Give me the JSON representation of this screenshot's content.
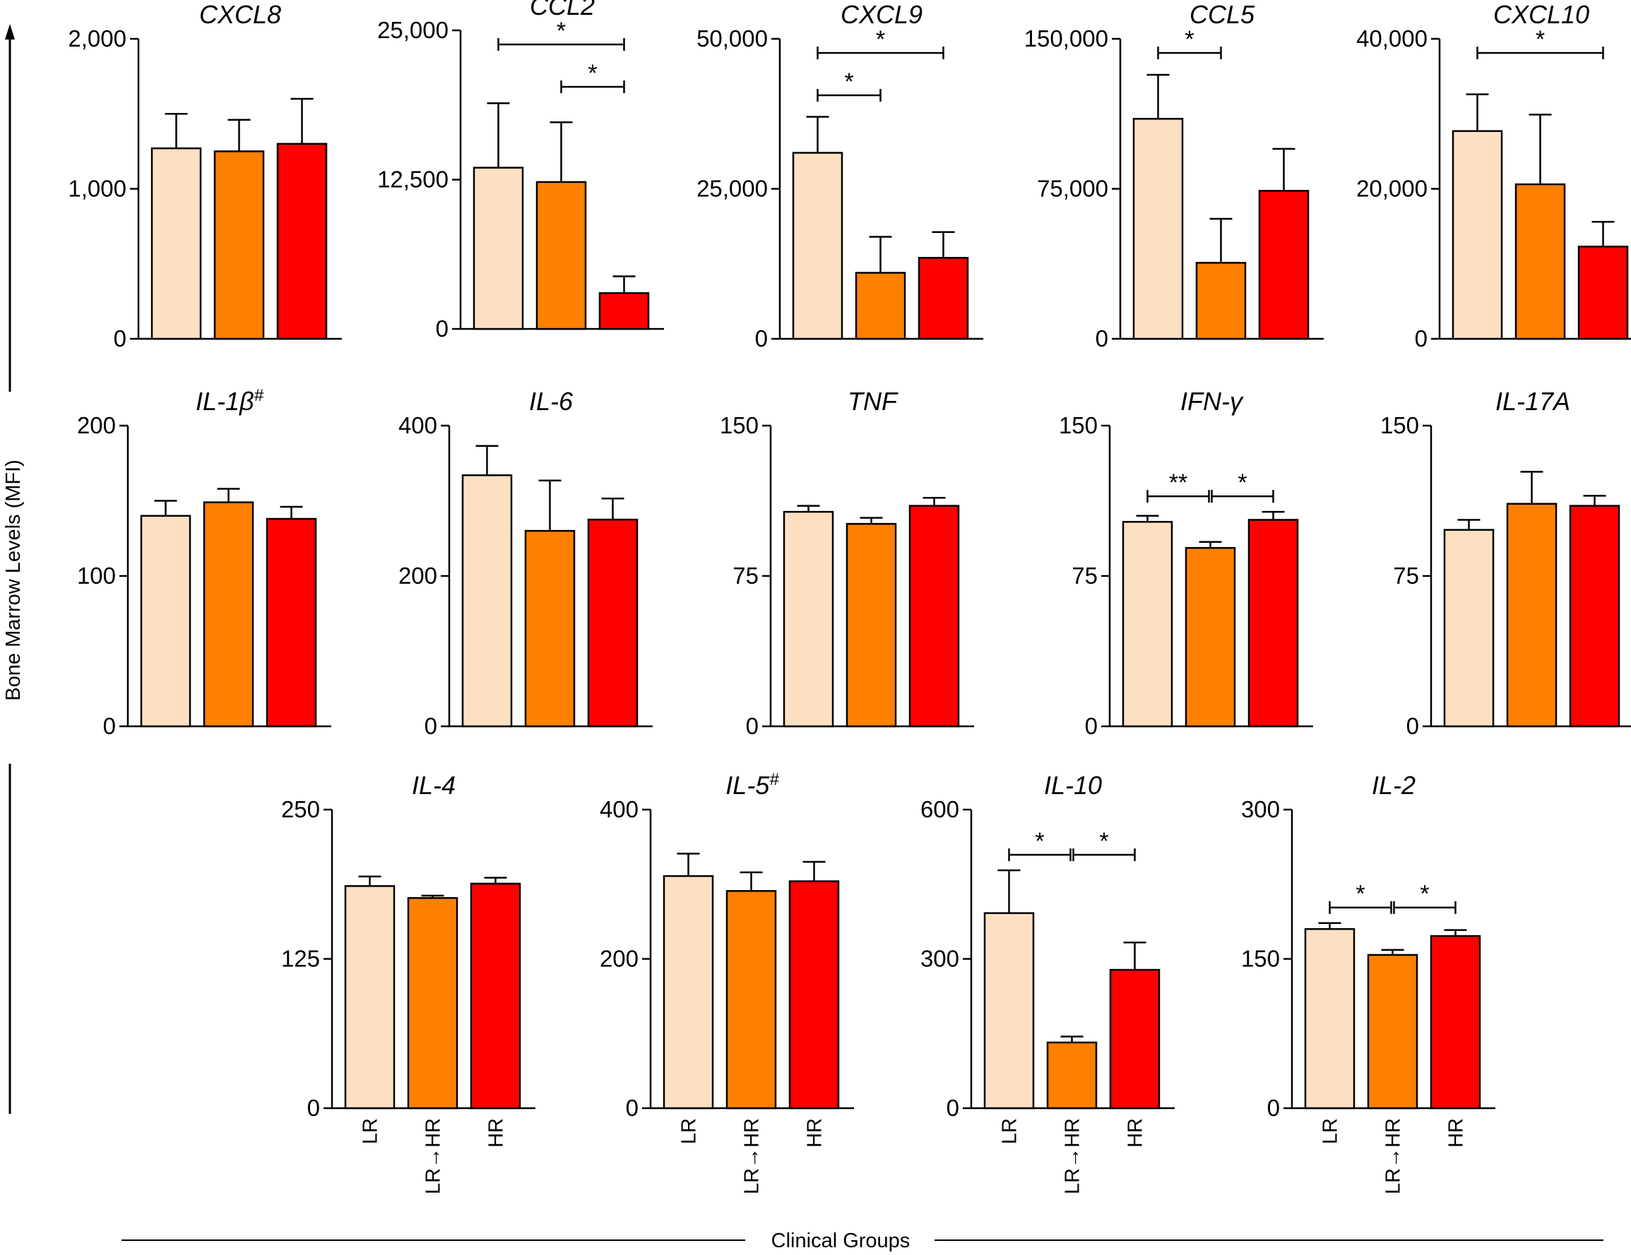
{
  "chart_data": {
    "type": "bar",
    "ylabel": "Bone Marrow Levels (MFI)",
    "xlabel": "Clinical Groups",
    "categories": [
      "LR",
      "LR→HR",
      "HR"
    ],
    "colors": [
      "#fde0c2",
      "#ff8000",
      "#ff0000"
    ],
    "panels": [
      {
        "title": "CXCL8",
        "sup": "",
        "ticks": [
          "0",
          "1,000",
          "2,000"
        ],
        "ylim": [
          0,
          2000
        ],
        "values": [
          1270,
          1250,
          1300
        ],
        "errors": [
          230,
          210,
          300
        ],
        "sig": [],
        "show_x_labels": false
      },
      {
        "title": "CCL2",
        "sup": "",
        "ticks": [
          "0",
          "12,500",
          "25,000"
        ],
        "ylim": [
          0,
          25000
        ],
        "values": [
          13500,
          12300,
          3000
        ],
        "errors": [
          5400,
          5000,
          1400
        ],
        "sig": [
          {
            "from": 0,
            "to": 2,
            "level": "*"
          },
          {
            "from": 1,
            "to": 2,
            "level": "*"
          }
        ],
        "show_x_labels": false
      },
      {
        "title": "CXCL9",
        "sup": "",
        "ticks": [
          "0",
          "25,000",
          "50,000"
        ],
        "ylim": [
          0,
          50000
        ],
        "values": [
          31000,
          11000,
          13500
        ],
        "errors": [
          6000,
          6000,
          4300
        ],
        "sig": [
          {
            "from": 0,
            "to": 1,
            "level": "*"
          },
          {
            "from": 0,
            "to": 2,
            "level": "*"
          }
        ],
        "show_x_labels": false
      },
      {
        "title": "CCL5",
        "sup": "",
        "ticks": [
          "0",
          "75,000",
          "150,000"
        ],
        "ylim": [
          0,
          150000
        ],
        "values": [
          110000,
          38000,
          74000
        ],
        "errors": [
          22000,
          22000,
          21000
        ],
        "sig": [
          {
            "from": 0,
            "to": 1,
            "level": "*"
          }
        ],
        "show_x_labels": false
      },
      {
        "title": "CXCL10",
        "sup": "",
        "ticks": [
          "0",
          "20,000",
          "40,000"
        ],
        "ylim": [
          0,
          40000
        ],
        "values": [
          27700,
          20600,
          12300
        ],
        "errors": [
          4900,
          9300,
          3300
        ],
        "sig": [
          {
            "from": 0,
            "to": 2,
            "level": "*"
          }
        ],
        "show_x_labels": false
      },
      {
        "title": "IL-1β",
        "sup": "#",
        "ticks": [
          "0",
          "100",
          "200"
        ],
        "ylim": [
          0,
          200
        ],
        "values": [
          140,
          149,
          138
        ],
        "errors": [
          10,
          9,
          8
        ],
        "sig": [],
        "show_x_labels": false
      },
      {
        "title": "IL-6",
        "sup": "",
        "ticks": [
          "0",
          "200",
          "400"
        ],
        "ylim": [
          0,
          400
        ],
        "values": [
          334,
          260,
          275
        ],
        "errors": [
          39,
          67,
          28
        ],
        "sig": [],
        "show_x_labels": false
      },
      {
        "title": "TNF",
        "sup": "",
        "ticks": [
          "0",
          "75",
          "150"
        ],
        "ylim": [
          0,
          150
        ],
        "values": [
          107,
          101,
          110
        ],
        "errors": [
          3,
          3,
          4
        ],
        "sig": [],
        "show_x_labels": false
      },
      {
        "title": "IFN-γ",
        "sup": "",
        "ticks": [
          "0",
          "75",
          "150"
        ],
        "ylim": [
          0,
          150
        ],
        "values": [
          102,
          89,
          103
        ],
        "errors": [
          3,
          3,
          4
        ],
        "sig": [
          {
            "from": 0,
            "to": 1,
            "level": "**"
          },
          {
            "from": 1,
            "to": 2,
            "level": "*"
          }
        ],
        "show_x_labels": false
      },
      {
        "title": "IL-17A",
        "sup": "",
        "ticks": [
          "0",
          "75",
          "150"
        ],
        "ylim": [
          0,
          150
        ],
        "values": [
          98,
          111,
          110
        ],
        "errors": [
          5,
          16,
          5
        ],
        "sig": [],
        "show_x_labels": false
      },
      {
        "title": "IL-4",
        "sup": "",
        "ticks": [
          "0",
          "125",
          "250"
        ],
        "ylim": [
          0,
          250
        ],
        "values": [
          186,
          176,
          188
        ],
        "errors": [
          8,
          2,
          5
        ],
        "sig": [],
        "show_x_labels": true
      },
      {
        "title": "IL-5",
        "sup": "#",
        "ticks": [
          "0",
          "200",
          "400"
        ],
        "ylim": [
          0,
          400
        ],
        "values": [
          311,
          291,
          304
        ],
        "errors": [
          30,
          25,
          26
        ],
        "sig": [],
        "show_x_labels": true
      },
      {
        "title": "IL-10",
        "sup": "",
        "ticks": [
          "0",
          "300",
          "600"
        ],
        "ylim": [
          0,
          600
        ],
        "values": [
          392,
          132,
          278
        ],
        "errors": [
          86,
          12,
          55
        ],
        "sig": [
          {
            "from": 0,
            "to": 1,
            "level": "*"
          },
          {
            "from": 1,
            "to": 2,
            "level": "*"
          }
        ],
        "show_x_labels": true
      },
      {
        "title": "IL-2",
        "sup": "",
        "ticks": [
          "0",
          "150",
          "300"
        ],
        "ylim": [
          0,
          300
        ],
        "values": [
          180,
          154,
          173
        ],
        "errors": [
          6,
          5,
          6
        ],
        "sig": [
          {
            "from": 0,
            "to": 1,
            "level": "*"
          },
          {
            "from": 1,
            "to": 2,
            "level": "*"
          }
        ],
        "show_x_labels": true
      }
    ]
  }
}
